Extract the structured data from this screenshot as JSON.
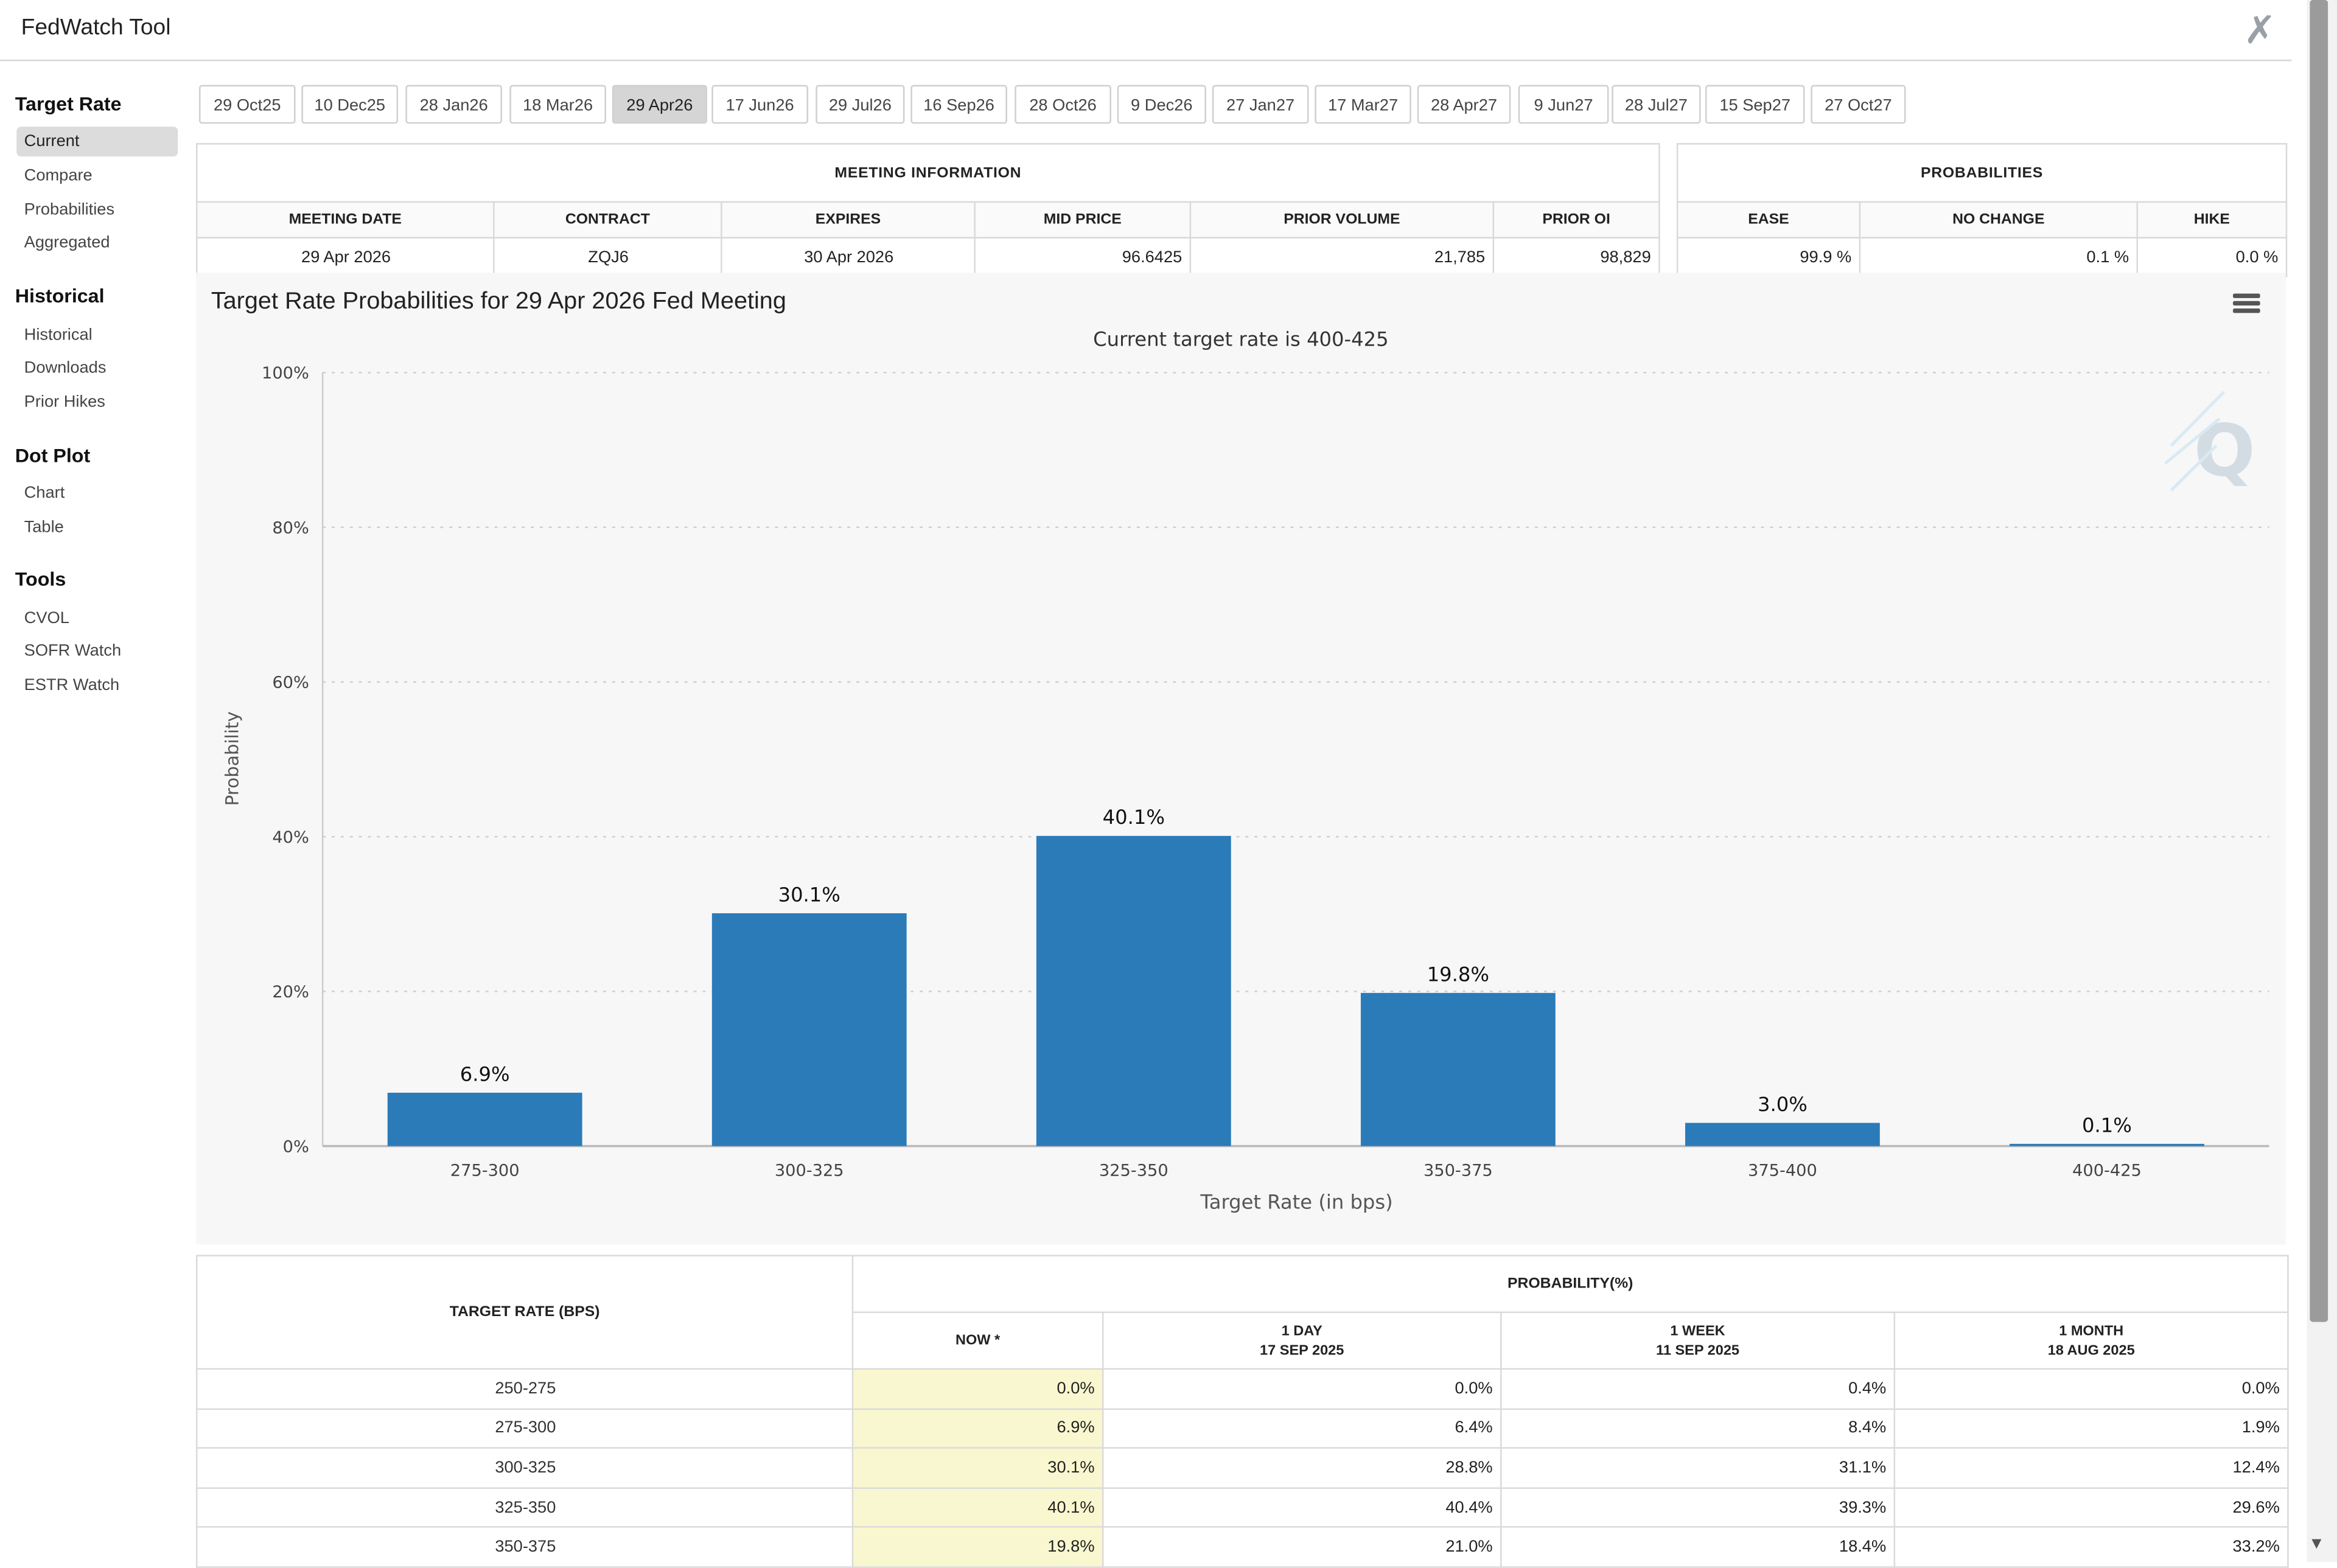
{
  "app": {
    "title": "FedWatch Tool"
  },
  "sidebar": {
    "sections": [
      {
        "heading": "Target Rate",
        "items": [
          "Current",
          "Compare",
          "Probabilities",
          "Aggregated"
        ]
      },
      {
        "heading": "Historical",
        "items": [
          "Historical",
          "Downloads",
          "Prior Hikes"
        ]
      },
      {
        "heading": "Dot Plot",
        "items": [
          "Chart",
          "Table"
        ]
      },
      {
        "heading": "Tools",
        "items": [
          "CVOL",
          "SOFR Watch",
          "ESTR Watch"
        ]
      }
    ],
    "active_item": "Current"
  },
  "meeting_tabs": [
    "29 Oct25",
    "10 Dec25",
    "28 Jan26",
    "18 Mar26",
    "29 Apr26",
    "17 Jun26",
    "29 Jul26",
    "16 Sep26",
    "28 Oct26",
    "9 Dec26",
    "27 Jan27",
    "17 Mar27",
    "28 Apr27",
    "9 Jun27",
    "28 Jul27",
    "15 Sep27",
    "27 Oct27"
  ],
  "active_tab": "29 Apr26",
  "meeting_info": {
    "heading": "MEETING INFORMATION",
    "columns": [
      "MEETING DATE",
      "CONTRACT",
      "EXPIRES",
      "MID PRICE",
      "PRIOR VOLUME",
      "PRIOR OI"
    ],
    "values": [
      "29 Apr 2026",
      "ZQJ6",
      "30 Apr 2026",
      "96.6425",
      "21,785",
      "98,829"
    ]
  },
  "probabilities": {
    "heading": "PROBABILITIES",
    "columns": [
      "EASE",
      "NO CHANGE",
      "HIKE"
    ],
    "values": [
      "99.9 %",
      "0.1 %",
      "0.0 %"
    ]
  },
  "chart_data": {
    "type": "bar",
    "title": "Target Rate Probabilities for 29 Apr 2026 Fed Meeting",
    "subtitle": "Current target rate is 400-425",
    "xlabel": "Target Rate (in bps)",
    "ylabel": "Probability",
    "categories": [
      "275-300",
      "300-325",
      "325-350",
      "350-375",
      "375-400",
      "400-425"
    ],
    "values": [
      6.9,
      30.1,
      40.1,
      19.8,
      3.0,
      0.1
    ],
    "data_labels": [
      "6.9%",
      "30.1%",
      "40.1%",
      "19.8%",
      "3.0%",
      "0.1%"
    ],
    "ylim": [
      0,
      100
    ],
    "yticks": [
      "0%",
      "20%",
      "40%",
      "60%",
      "80%",
      "100%"
    ],
    "grid": true,
    "bar_color": "#2b7bb9"
  },
  "history_table": {
    "rate_header": "TARGET RATE (BPS)",
    "prob_header": "PROBABILITY(%)",
    "columns": [
      {
        "line1": "NOW *",
        "line2": ""
      },
      {
        "line1": "1 DAY",
        "line2": "17 SEP 2025"
      },
      {
        "line1": "1 WEEK",
        "line2": "11 SEP 2025"
      },
      {
        "line1": "1 MONTH",
        "line2": "18 AUG 2025"
      }
    ],
    "rows": [
      {
        "rate": "250-275",
        "values": [
          "0.0%",
          "0.0%",
          "0.4%",
          "0.0%"
        ]
      },
      {
        "rate": "275-300",
        "values": [
          "6.9%",
          "6.4%",
          "8.4%",
          "1.9%"
        ]
      },
      {
        "rate": "300-325",
        "values": [
          "30.1%",
          "28.8%",
          "31.1%",
          "12.4%"
        ]
      },
      {
        "rate": "325-350",
        "values": [
          "40.1%",
          "40.4%",
          "39.3%",
          "29.6%"
        ]
      },
      {
        "rate": "350-375",
        "values": [
          "19.8%",
          "21.0%",
          "18.4%",
          "33.2%"
        ]
      }
    ],
    "highlight_color": "#f8f7cf"
  }
}
